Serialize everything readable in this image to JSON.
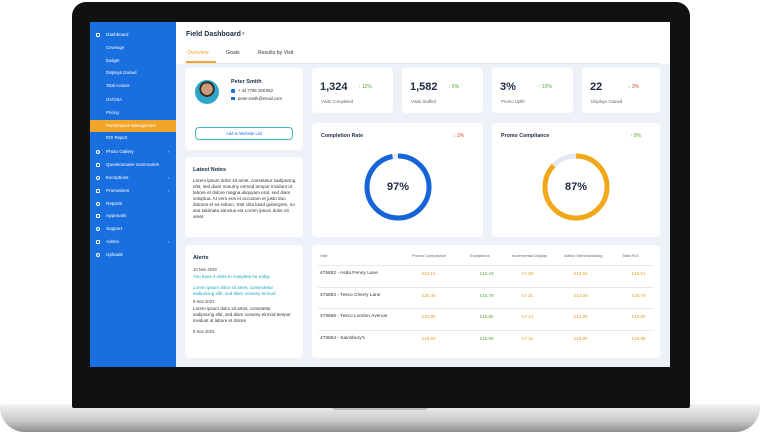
{
  "header": {
    "title": "Field Dashboard",
    "tabs": [
      "Overview",
      "Goals",
      "Results by Visit"
    ]
  },
  "sidebar": {
    "top": "Dashboard",
    "subitems": [
      "Coverage",
      "Budget",
      "Displays Gained",
      "Total Actions",
      "OA/OSA",
      "Pricing",
      "Performance Management",
      "ROI Report"
    ],
    "items": [
      "Photo Gallery",
      "Questionnaire Summaries",
      "Exceptions",
      "Promotions",
      "Reports",
      "Approvals",
      "Support",
      "Admin",
      "Uploads"
    ]
  },
  "profile": {
    "name": "Peter Smith",
    "phone": "+ 44 7766 258 852",
    "email": "peter.smith@email.com",
    "button": "Add to Website List"
  },
  "notes": {
    "title": "Latest Notes",
    "text": "Lorem ipsum dolor sit amet, consetetur sadipscing elitr, sed diam nonumy eirmod tempor invidunt ut labore et dolore magna aliquyam erat, sed diam voluptua. At vero eos et accusam et justo duo dolores et ea rebum. Stet clita kasd gubergren, no sea takimata sanctus est Lorem ipsum dolor sit amet."
  },
  "alerts": {
    "title": "Alerts",
    "entries": [
      {
        "date": "10 Nov 2023",
        "text": "You have 4 visits to complete for today"
      },
      {
        "date": "",
        "text": "Lorem ipsum dolor sit amet, consectetur sadipscing elitr, sed diam nonumy eirmod"
      },
      {
        "date": "9 Nov 2023",
        "text": "Lorem ipsum dolor sit amet, consetetur sadipscing elitr, sed diam nonumy eirmod tempor invidunt ut labore et dolore"
      },
      {
        "date": "9 Nov 2023",
        "text": ""
      }
    ]
  },
  "kpis": [
    {
      "value": "1,324",
      "change": "↑ 12%",
      "label": "Visits Completed",
      "direction": "up"
    },
    {
      "value": "1,582",
      "change": "↑ 6%",
      "label": "Visits Staffed",
      "direction": "up"
    },
    {
      "value": "3%",
      "change": "↑ 10%",
      "label": "Promo Uplift",
      "direction": "up"
    },
    {
      "value": "22",
      "change": "↓ 3%",
      "label": "Displays Gained",
      "direction": "down"
    }
  ],
  "gauges": [
    {
      "title": "Completion Rate",
      "change": "↓ 3%",
      "direction": "down",
      "value": 97,
      "label": "97%",
      "color": "#1565d8"
    },
    {
      "title": "Promo Compliance",
      "change": "↑ 8%",
      "direction": "up",
      "value": 87,
      "label": "87%",
      "color": "#f0a818"
    }
  ],
  "table": {
    "columns": [
      "Visit",
      "Promo Compliance",
      "Exceptions",
      "Incremental Display",
      "Adhoc Merchandising",
      "Total ROI"
    ],
    "rows": [
      [
        "475852 - Asda Penny Lane",
        "£15.10",
        "£10.43",
        "£7.29",
        "£12.50",
        "£15.51"
      ],
      [
        "475853 - Tesco Cherry Lane",
        "£25.40",
        "£15.78",
        "£7.31",
        "£12.50",
        "£15.78"
      ],
      [
        "479856 - Tesco London Avenue",
        "£24.80",
        "£15.80",
        "£7.14",
        "£12.86",
        "£15.80"
      ],
      [
        "479854 - Sainsbury's",
        "£15.60",
        "£15.99",
        "£7.15",
        "£15.80",
        "£15.99"
      ]
    ]
  }
}
